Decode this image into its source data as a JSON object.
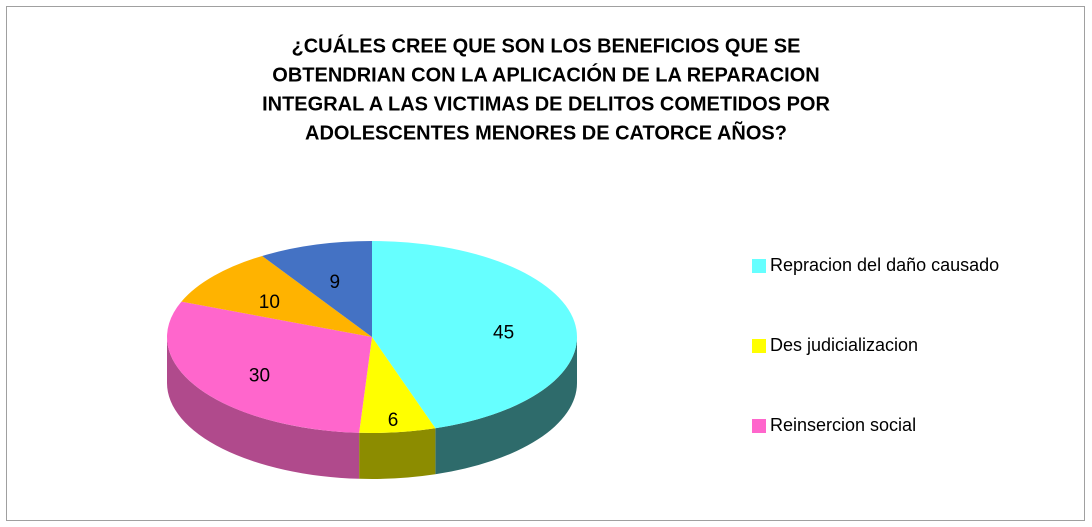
{
  "chart_data": {
    "type": "pie3d",
    "title": [
      "¿CUÁLES CREE QUE SON LOS BENEFICIOS QUE SE",
      "OBTENDRIAN CON LA APLICACIÓN DE LA REPARACION",
      "INTEGRAL A LAS VICTIMAS DE DELITOS COMETIDOS POR",
      "ADOLESCENTES MENORES DE CATORCE AÑOS?"
    ],
    "categories": [
      "Repracion del daño causado",
      "Des judicializacion",
      "Reinsercion social",
      null,
      null
    ],
    "values": [
      45,
      6,
      30,
      10,
      9
    ],
    "colors": [
      "#66ffff",
      "#ffff00",
      "#ff66cc",
      "#ffb300",
      "#4472c4"
    ],
    "side_colors": [
      "#2e6b6b",
      "#8c8c00",
      "#b04a8c",
      "#b07c00",
      "#2f4f8a"
    ],
    "legend": "right"
  }
}
